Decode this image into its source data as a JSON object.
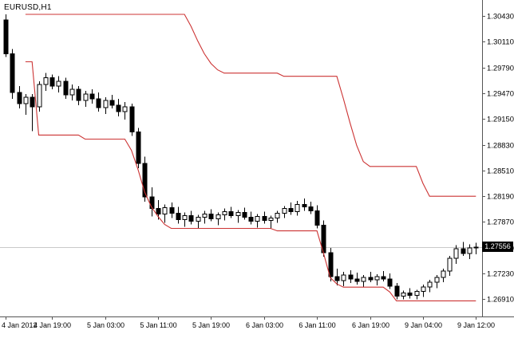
{
  "colors": {
    "background": "#ffffff",
    "candle_outline": "#000000",
    "candle_bear_fill": "#000000",
    "candle_bull_fill": "#ffffff",
    "band_line": "#cc3333",
    "current_price_line": "#c9c9c9",
    "price_tag_bg": "#000000",
    "price_tag_text": "#ffffff",
    "axis_line": "#555555",
    "axis_text": "#000000"
  },
  "chart_data": {
    "type": "candlestick",
    "symbol_label": "EURUSD,H1",
    "symbol": "EURUSD",
    "timeframe": "H1",
    "current_price": "1.27556",
    "current_price_value": 1.27556,
    "y_axis": {
      "price_top": 1.30628,
      "price_bottom": 1.26696,
      "tick_prices": [
        1.3043,
        1.3011,
        1.2979,
        1.2947,
        1.2915,
        1.2883,
        1.2851,
        1.2819,
        1.2787,
        1.2755,
        1.2723,
        1.2691
      ],
      "tick_labels": [
        "1.30430",
        "1.30110",
        "1.29790",
        "1.29470",
        "1.29150",
        "1.28830",
        "1.28510",
        "1.28190",
        "1.27870",
        "1.27550",
        "1.27230",
        "1.26910"
      ]
    },
    "x_axis": {
      "tick_labels": [
        "4 Jan 2012",
        "4 Jan 19:00",
        "5 Jan 03:00",
        "5 Jan 11:00",
        "5 Jan 19:00",
        "6 Jan 03:00",
        "6 Jan 11:00",
        "6 Jan 19:00",
        "9 Jan 04:00",
        "9 Jan 12:00"
      ],
      "tick_bar_index": [
        0,
        7,
        15,
        23,
        31,
        39,
        47,
        55,
        63,
        71
      ]
    },
    "bars_total": 72,
    "candles": [
      [
        1.3038,
        1.3045,
        1.2992,
        1.2996
      ],
      [
        1.2996,
        1.3002,
        1.294,
        1.2948
      ],
      [
        1.2948,
        1.2956,
        1.2928,
        1.2934
      ],
      [
        1.2934,
        1.2946,
        1.292,
        1.2942
      ],
      [
        1.2942,
        1.2946,
        1.29,
        1.293
      ],
      [
        1.293,
        1.2962,
        1.2924,
        1.2958
      ],
      [
        1.2958,
        1.2972,
        1.295,
        1.2966
      ],
      [
        1.2966,
        1.297,
        1.2952,
        1.2956
      ],
      [
        1.2956,
        1.2968,
        1.2948,
        1.2962
      ],
      [
        1.2962,
        1.2966,
        1.294,
        1.2945
      ],
      [
        1.2945,
        1.2958,
        1.2938,
        1.2952
      ],
      [
        1.2952,
        1.2956,
        1.2932,
        1.2938
      ],
      [
        1.2938,
        1.295,
        1.293,
        1.2946
      ],
      [
        1.2946,
        1.2952,
        1.2934,
        1.294
      ],
      [
        1.294,
        1.2948,
        1.2924,
        1.2929
      ],
      [
        1.2929,
        1.2942,
        1.2921,
        1.2938
      ],
      [
        1.2938,
        1.2945,
        1.2928,
        1.2932
      ],
      [
        1.2932,
        1.294,
        1.2918,
        1.2924
      ],
      [
        1.2924,
        1.2936,
        1.2914,
        1.293
      ],
      [
        1.293,
        1.2934,
        1.2894,
        1.2899
      ],
      [
        1.2899,
        1.2904,
        1.2854,
        1.286
      ],
      [
        1.286,
        1.2868,
        1.2812,
        1.2818
      ],
      [
        1.2818,
        1.283,
        1.2794,
        1.2804
      ],
      [
        1.2804,
        1.2814,
        1.279,
        1.2797
      ],
      [
        1.2797,
        1.2809,
        1.2786,
        1.2805
      ],
      [
        1.2805,
        1.2811,
        1.2792,
        1.2798
      ],
      [
        1.2798,
        1.2806,
        1.2785,
        1.279
      ],
      [
        1.279,
        1.2799,
        1.2781,
        1.2795
      ],
      [
        1.2795,
        1.2801,
        1.2784,
        1.2788
      ],
      [
        1.2788,
        1.2796,
        1.2779,
        1.2793
      ],
      [
        1.2793,
        1.2801,
        1.2785,
        1.2797
      ],
      [
        1.2797,
        1.2803,
        1.2788,
        1.2791
      ],
      [
        1.2791,
        1.2799,
        1.2783,
        1.2796
      ],
      [
        1.2796,
        1.2804,
        1.2789,
        1.28
      ],
      [
        1.28,
        1.2806,
        1.2792,
        1.2795
      ],
      [
        1.2795,
        1.2802,
        1.2786,
        1.2799
      ],
      [
        1.2799,
        1.2805,
        1.279,
        1.2793
      ],
      [
        1.2793,
        1.28,
        1.2784,
        1.2788
      ],
      [
        1.2788,
        1.2797,
        1.278,
        1.2794
      ],
      [
        1.2794,
        1.28,
        1.2785,
        1.2789
      ],
      [
        1.2789,
        1.2795,
        1.2779,
        1.2792
      ],
      [
        1.2792,
        1.2801,
        1.2786,
        1.2798
      ],
      [
        1.2798,
        1.2807,
        1.2792,
        1.2804
      ],
      [
        1.2804,
        1.2811,
        1.2796,
        1.28
      ],
      [
        1.28,
        1.2813,
        1.2795,
        1.2809
      ],
      [
        1.2809,
        1.2816,
        1.2801,
        1.2806
      ],
      [
        1.2806,
        1.2812,
        1.2797,
        1.2801
      ],
      [
        1.2801,
        1.2808,
        1.2779,
        1.2783
      ],
      [
        1.2783,
        1.2789,
        1.2744,
        1.2749
      ],
      [
        1.2749,
        1.2755,
        1.2713,
        1.2719
      ],
      [
        1.2719,
        1.2729,
        1.2708,
        1.2714
      ],
      [
        1.2714,
        1.2725,
        1.2707,
        1.2721
      ],
      [
        1.2721,
        1.2727,
        1.2711,
        1.2716
      ],
      [
        1.2716,
        1.2724,
        1.2709,
        1.2713
      ],
      [
        1.2713,
        1.2721,
        1.2706,
        1.2718
      ],
      [
        1.2718,
        1.2725,
        1.2712,
        1.2715
      ],
      [
        1.2715,
        1.2722,
        1.2708,
        1.2719
      ],
      [
        1.2719,
        1.2726,
        1.2713,
        1.2716
      ],
      [
        1.2716,
        1.2723,
        1.2704,
        1.2707
      ],
      [
        1.2707,
        1.2711,
        1.2691,
        1.2695
      ],
      [
        1.2695,
        1.2702,
        1.2691,
        1.2699
      ],
      [
        1.2699,
        1.2705,
        1.2692,
        1.2696
      ],
      [
        1.2696,
        1.2703,
        1.2691,
        1.2701
      ],
      [
        1.2701,
        1.2709,
        1.2694,
        1.2706
      ],
      [
        1.2706,
        1.2715,
        1.27,
        1.2712
      ],
      [
        1.2712,
        1.2721,
        1.2705,
        1.2718
      ],
      [
        1.2718,
        1.2729,
        1.2712,
        1.2726
      ],
      [
        1.2726,
        1.2745,
        1.272,
        1.2742
      ],
      [
        1.2742,
        1.2758,
        1.2735,
        1.2754
      ],
      [
        1.2754,
        1.2762,
        1.2745,
        1.2748
      ],
      [
        1.2748,
        1.2759,
        1.2741,
        1.2755
      ],
      [
        1.2755,
        1.2761,
        1.2747,
        1.2756
      ]
    ],
    "bands": {
      "upper": [
        null,
        null,
        null,
        1.3045,
        1.3045,
        1.3045,
        1.3045,
        1.3045,
        1.3045,
        1.3045,
        1.3045,
        1.3045,
        1.3045,
        1.3045,
        1.3045,
        1.3045,
        1.3045,
        1.3045,
        1.3045,
        1.3045,
        1.3045,
        1.3045,
        1.3045,
        1.3045,
        1.3045,
        1.3045,
        1.3045,
        1.3045,
        1.303,
        1.3012,
        1.2996,
        1.2984,
        1.2976,
        1.2972,
        1.2972,
        1.2972,
        1.2972,
        1.2972,
        1.2972,
        1.2972,
        1.2972,
        1.2972,
        1.2968,
        1.2968,
        1.2968,
        1.2968,
        1.2968,
        1.2968,
        1.2968,
        1.2968,
        1.2968,
        1.294,
        1.291,
        1.2882,
        1.2862,
        1.2856,
        1.2856,
        1.2856,
        1.2856,
        1.2856,
        1.2856,
        1.2856,
        1.2856,
        1.2835,
        1.2819,
        1.2819,
        1.2819,
        1.2819,
        1.2819,
        1.2819,
        1.2819,
        1.2819
      ],
      "lower": [
        null,
        null,
        null,
        1.2986,
        1.2986,
        1.2895,
        1.2895,
        1.2895,
        1.2895,
        1.2895,
        1.2895,
        1.2895,
        1.289,
        1.289,
        1.289,
        1.289,
        1.289,
        1.289,
        1.289,
        1.2876,
        1.2852,
        1.2824,
        1.2806,
        1.2794,
        1.2784,
        1.2779,
        1.2779,
        1.2779,
        1.2779,
        1.2779,
        1.2779,
        1.2779,
        1.2779,
        1.2779,
        1.2779,
        1.2779,
        1.2779,
        1.2779,
        1.2779,
        1.2779,
        1.2779,
        1.2776,
        1.2776,
        1.2776,
        1.2776,
        1.2776,
        1.2776,
        1.2776,
        1.2748,
        1.2718,
        1.271,
        1.2706,
        1.2706,
        1.2706,
        1.2706,
        1.2706,
        1.2706,
        1.2706,
        1.27,
        1.2689,
        1.2689,
        1.2689,
        1.2689,
        1.2689,
        1.2689,
        1.2689,
        1.2689,
        1.2689,
        1.2689,
        1.2689,
        1.2689,
        1.2689
      ]
    }
  }
}
